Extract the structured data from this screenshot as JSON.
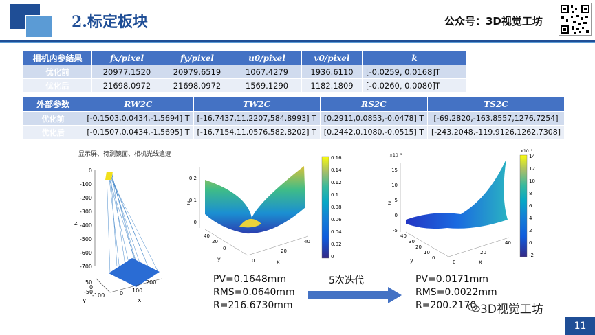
{
  "header": {
    "title": "2.标定板块",
    "wechat": "公众号：3D视觉工坊"
  },
  "intrinsic_table": {
    "headers": [
      "相机内参结果",
      "fx/pixel",
      "fy/pixel",
      "u0/pixel",
      "v0/pixel",
      "k"
    ],
    "rows": [
      {
        "label": "优化前",
        "fx": "20977.1520",
        "fy": "20979.6519",
        "u0": "1067.4279",
        "v0": "1936.6110",
        "k": "[-0.0259, 0.0168]T"
      },
      {
        "label": "优化后",
        "fx": "21698.0972",
        "fy": "21698.0972",
        "u0": "1569.1290",
        "v0": "1182.1809",
        "k": "[-0.0260, 0.0080]T"
      }
    ]
  },
  "extrinsic_table": {
    "headers": [
      "外部参数",
      "RW2C",
      "TW2C",
      "RS2C",
      "TS2C"
    ],
    "rows": [
      {
        "label": "优化前",
        "rw": "[-0.1503,0.0434,-1.5694] T",
        "tw": "[-16.7437,11.2207,584.8993] T",
        "rs": "[0.2911,0.0853,-0.0478] T",
        "ts": "[-69.2820,-163.8557,1276.7254]"
      },
      {
        "label": "优化后",
        "rw": "[-0.1507,0.0434,-1.5695] T",
        "tw": "[-16.7154,11.0576,582.8202] T",
        "rs": "[0.2442,0.1080,-0.0515] T",
        "ts": "[-243.2048,-119.9126,1262.7308]"
      }
    ]
  },
  "figures": {
    "left_caption": "显示屏、待测镜面、相机光线追迹",
    "left_yticks": [
      "0",
      "-100",
      "-200",
      "-300",
      "-400",
      "-500",
      "-600",
      "-700"
    ],
    "left_xticks": [
      "0",
      "100",
      "200"
    ],
    "left_yaxis_ticks": [
      "50",
      "0",
      "-50",
      "-100"
    ],
    "mid_colorbar": [
      "0.16",
      "0.14",
      "0.12",
      "0.1",
      "0.08",
      "0.06",
      "0.04",
      "0.02",
      "0"
    ],
    "mid_zticks": [
      "0.2",
      "0.1",
      "0"
    ],
    "right_colorbar": [
      "14",
      "12",
      "10",
      "8",
      "6",
      "4",
      "2",
      "0",
      "-2"
    ],
    "right_colorbar_exp": "×10⁻³",
    "right_zticks": [
      "15",
      "10",
      "5",
      "0",
      "-5"
    ],
    "right_zexp": "×10⁻³",
    "axis_x": "x",
    "axis_y": "y",
    "axis_z": "z",
    "surf_xticks": [
      "0",
      "20",
      "40"
    ],
    "surf_yticks": [
      "40",
      "30",
      "20",
      "10",
      "0"
    ]
  },
  "results": {
    "before": {
      "pv": "PV=0.1648mm",
      "rms": "RMS=0.0640mm",
      "r": "R=216.6730mm"
    },
    "iteration": "5次迭代",
    "after": {
      "pv": "PV=0.0171mm",
      "rms": "RMS=0.0022mm",
      "r": "R=200.2170"
    }
  },
  "footer": {
    "watermark": "3D视觉工坊",
    "page": "11"
  },
  "colors": {
    "accent": "#1f4e96",
    "light": "#5b9bd5",
    "table_head": "#4472c4"
  }
}
